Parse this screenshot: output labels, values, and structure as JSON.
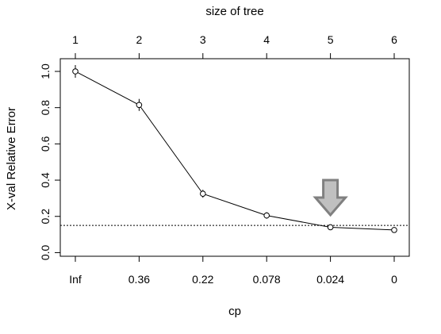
{
  "chart_data": {
    "type": "line",
    "title": "",
    "ylabel": "X-val Relative Error",
    "xlabel_bottom": "cp",
    "xlabel_top": "size of tree",
    "ylim": [
      -0.02,
      1.07
    ],
    "yticks": [
      0.0,
      0.2,
      0.4,
      0.6,
      0.8,
      1.0
    ],
    "ytick_labels": [
      "0.0",
      "0.2",
      "0.4",
      "0.6",
      "0.8",
      "1.0"
    ],
    "x_top_labels": [
      "1",
      "2",
      "3",
      "4",
      "5",
      "6"
    ],
    "x_bottom_labels": [
      "Inf",
      "0.36",
      "0.22",
      "0.078",
      "0.024",
      "0"
    ],
    "series": [
      {
        "values": [
          1.0,
          0.815,
          0.325,
          0.205,
          0.14,
          0.125
        ],
        "error": [
          0.035,
          0.033,
          0.022,
          0.018,
          0.012,
          0.012
        ]
      }
    ],
    "reference_line": {
      "y": 0.15,
      "style": "dotted"
    },
    "annotation": {
      "type": "arrow-down",
      "at_index": 4,
      "fill": "#c0c0c0",
      "stroke": "#808080"
    },
    "grid": false
  }
}
